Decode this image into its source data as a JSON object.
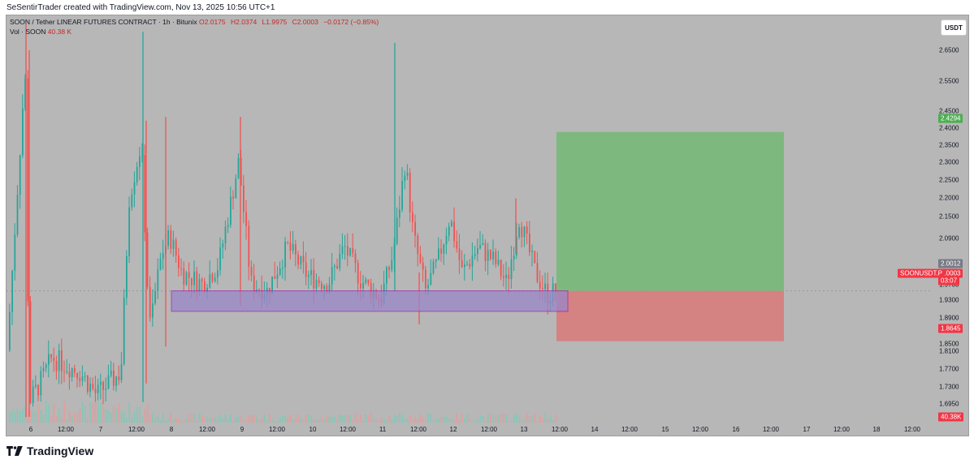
{
  "header": {
    "attribution": "SeSentirTrader created with TradingView.com, Nov 13, 2025 10:56 UTC+1"
  },
  "legend": {
    "symbol_line": "SOON / Tether LINEAR FUTURES CONTRACT · 1h · Bitunix",
    "open": "O2.0175",
    "high": "H2.0374",
    "low": "L1.9975",
    "close": "C2.0003",
    "change": "−0.0172 (−0.85%)",
    "volume_label": "Vol · SOON",
    "volume_value": "40.38 K"
  },
  "price_axis": {
    "currency": "USDT",
    "ticks": [
      "2.6500",
      "2.5500",
      "2.4500",
      "2.4000",
      "2.3500",
      "2.3000",
      "2.2500",
      "2.2000",
      "2.1500",
      "2.0900",
      "1.9700",
      "1.9300",
      "1.8900",
      "1.8500",
      "1.8100",
      "1.7700",
      "1.7300",
      "1.6950"
    ],
    "tags": {
      "target": "2.4294",
      "previous": "2.0012",
      "symbol": "SOONUSDT.P",
      "last": "2.0003",
      "countdown": "03:07",
      "stop": "1.8645",
      "volume": "40.38K"
    }
  },
  "time_axis": {
    "ticks": [
      "6",
      "12:00",
      "7",
      "12:00",
      "8",
      "12:00",
      "9",
      "12:00",
      "10",
      "12:00",
      "11",
      "12:00",
      "12",
      "12:00",
      "13",
      "12:00",
      "14",
      "12:00",
      "15",
      "12:00",
      "16",
      "12:00",
      "17",
      "12:00",
      "18",
      "12:00"
    ]
  },
  "footer": {
    "brand": "TradingView"
  },
  "colors": {
    "background": "#b7b7b7",
    "up": "#26a69a",
    "down": "#ef5350",
    "target_zone": "#7db87f",
    "stop_zone": "#d48282",
    "support_box": "#9a86c9",
    "tag_green": "#4caf50",
    "tag_red": "#f23645",
    "tag_gray": "#787b86"
  },
  "chart_data": {
    "type": "candlestick",
    "symbol": "SOONUSDT.P",
    "interval": "1h",
    "yscale": "linear",
    "ylim": [
      1.66,
      2.7
    ],
    "last_price": 2.0003,
    "position": {
      "entry": 2.0003,
      "target": 2.4294,
      "stop": 1.8645
    },
    "support_zone": {
      "top": 2.0003,
      "bottom": 1.945
    },
    "swing_points": [
      {
        "time": "6",
        "price": 2.72
      },
      {
        "time": "7 12:00",
        "price": 2.46
      },
      {
        "time": "9",
        "price": 2.47
      },
      {
        "time": "11",
        "price": 2.67
      },
      {
        "time": "11 12:00",
        "price": 1.91
      },
      {
        "time": "13",
        "price": 2.25
      },
      {
        "time": "13 12:00",
        "price": 1.99
      }
    ]
  }
}
